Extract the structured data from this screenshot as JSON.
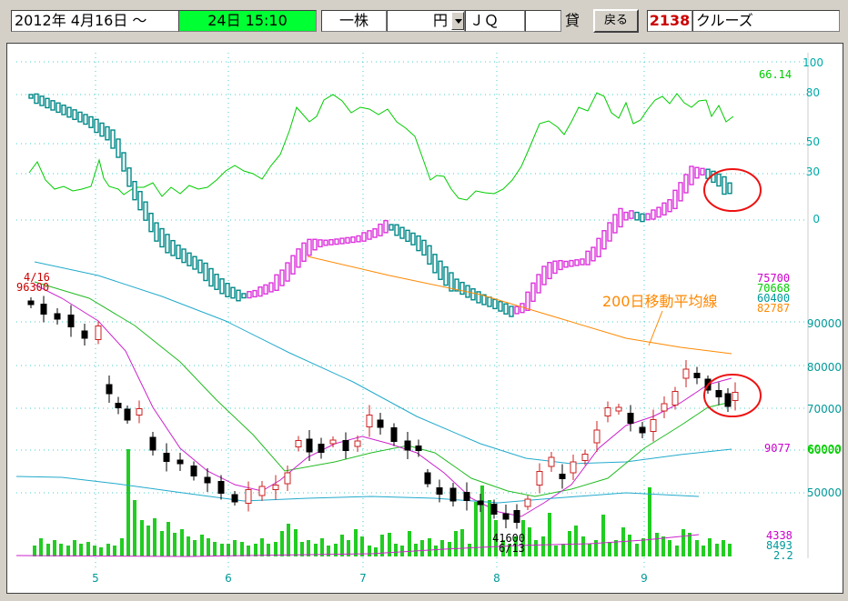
{
  "toolbar": {
    "date_range_start": "2012年  4月16日 ～",
    "date_range_end": "24日  15:10",
    "unit_label": "一株",
    "price_unit": "円",
    "market": "ＪＱ",
    "lending_label": "貸",
    "back_button": "戻る",
    "stock_code": "2138",
    "stock_name": "クルーズ"
  },
  "chart_data": {
    "type": "candlestick",
    "x_ticks": [
      "5",
      "6",
      "7",
      "8",
      "9"
    ],
    "oscillator": {
      "axis_ticks": [
        "100",
        "80",
        "50",
        "30",
        "0"
      ],
      "current_value": "66.14",
      "line_color": "#00cc00"
    },
    "price": {
      "axis_ticks": [
        "90000",
        "80000",
        "70000",
        "60000",
        "50000"
      ],
      "first_date": "4/16",
      "first_price": "96300",
      "low_price": "41600",
      "low_date": "6/13",
      "ma_values": [
        {
          "value": "75700",
          "color": "#cc00cc"
        },
        {
          "value": "70668",
          "color": "#00cc00"
        },
        {
          "value": "60400",
          "color": "#009999"
        },
        {
          "value": "82787",
          "color": "#ff8800"
        }
      ],
      "ma200_label": "200日移動平均線",
      "ma200_color": "#ff8800"
    },
    "volume": {
      "max_label": "9077",
      "overlap_label": "60000",
      "values": [
        {
          "value": "4338",
          "color": "#cc00cc"
        },
        {
          "value": "8493",
          "color": "#009999"
        },
        {
          "value": "2.2",
          "color": "#009999"
        }
      ],
      "bar_color": "#22cc22"
    },
    "annotations": [
      "red-circle-upper-right",
      "red-circle-price-right"
    ]
  }
}
